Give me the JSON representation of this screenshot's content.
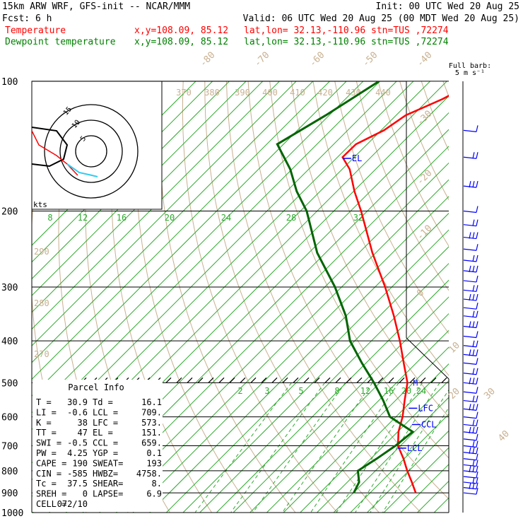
{
  "header": {
    "line1_left": "15km ARW WRF, GFS-init  -- NCAR/MMM",
    "line1_right": "Init: 00 UTC Wed 20 Aug 25",
    "line2_left": "Fcst:    6 h",
    "line2_right": "Valid: 06 UTC Wed 20 Aug 25 (00 MDT Wed 20 Aug 25)",
    "temp_label": "Temperature",
    "temp_xy": "x,y=108.09, 85.12",
    "temp_loc": "lat,lon= 32.13,-110.96  stn=TUS ,72274",
    "dew_label": "Dewpoint temperature",
    "dew_xy": "x,y=108.09, 85.12",
    "dew_loc": "lat,lon= 32.13,-110.96  stn=TUS ,72274",
    "barb_title1": "Full barb:",
    "barb_title2": "5 m s⁻¹"
  },
  "colors": {
    "temperature": "#ff0000",
    "dewpoint": "#006400",
    "parcel": "#ff0000",
    "isotherm": "#2eaa2e",
    "dry_adiabat": "#c8b090",
    "isobar": "#000000",
    "barb": "#0000ff",
    "hodo_cyan": "#33ccee"
  },
  "chart_data": {
    "type": "skew-t",
    "pressure_levels": [
      100,
      200,
      300,
      400,
      500,
      600,
      700,
      800,
      900,
      1000
    ],
    "temperature_tick_labels": [
      "8",
      "12",
      "16",
      "20",
      "24",
      "28",
      "32"
    ],
    "mixing_ratio_labels": [
      "2",
      "3",
      "5",
      "8",
      "12",
      "16",
      "20",
      "24"
    ],
    "dry_adiabat_labels_top": [
      "-80",
      "-70",
      "-60",
      "-50",
      "-40"
    ],
    "dry_adiabat_labels_right": [
      "-30",
      "-20",
      "-10",
      "0",
      "10",
      "20",
      "30",
      "40"
    ],
    "theta_labels_top": [
      "370",
      "380",
      "390",
      "400",
      "410",
      "420",
      "430",
      "440"
    ],
    "theta_labels_left": [
      "290",
      "280",
      "270"
    ],
    "annotations": [
      "EL",
      "LFC",
      "CCL",
      "LCL"
    ],
    "temperature_profile": [
      [
        900,
        30.9
      ],
      [
        850,
        27.4
      ],
      [
        800,
        23.6
      ],
      [
        750,
        19.8
      ],
      [
        700,
        15.4
      ],
      [
        650,
        12.2
      ],
      [
        600,
        9.6
      ],
      [
        550,
        6.2
      ],
      [
        500,
        2.6
      ],
      [
        450,
        -3.0
      ],
      [
        400,
        -9.2
      ],
      [
        350,
        -16.6
      ],
      [
        300,
        -25.6
      ],
      [
        250,
        -36.8
      ],
      [
        200,
        -49.5
      ],
      [
        180,
        -55.8
      ],
      [
        160,
        -62.2
      ],
      [
        150,
        -66.8
      ],
      [
        140,
        -66.7
      ],
      [
        130,
        -63.3
      ],
      [
        120,
        -61.7
      ],
      [
        110,
        -56.8
      ],
      [
        100,
        -52.9
      ]
    ],
    "dewpoint_profile": [
      [
        900,
        16.1
      ],
      [
        850,
        14.8
      ],
      [
        800,
        11.8
      ],
      [
        750,
        13.4
      ],
      [
        700,
        14.8
      ],
      [
        650,
        15.6
      ],
      [
        600,
        6.6
      ],
      [
        550,
        1.1
      ],
      [
        500,
        -5.4
      ],
      [
        450,
        -13.0
      ],
      [
        400,
        -21.1
      ],
      [
        350,
        -28.1
      ],
      [
        300,
        -37.6
      ],
      [
        250,
        -50.0
      ],
      [
        200,
        -62.5
      ],
      [
        180,
        -69.6
      ],
      [
        160,
        -76.4
      ],
      [
        140,
        -85.5
      ],
      [
        120,
        -80.8
      ],
      [
        100,
        -76.2
      ]
    ],
    "parcel_info": {
      "title": "Parcel Info",
      "rows": [
        [
          "T  =",
          "30.9",
          "Td =",
          "16.1"
        ],
        [
          "LI =",
          "-0.6",
          "LCL =",
          "709."
        ],
        [
          "K  =",
          "38",
          "LFC =",
          "573."
        ],
        [
          "TT =",
          "47",
          "EL  =",
          "151."
        ],
        [
          "SWI =",
          "-0.5",
          "CCL =",
          "659."
        ],
        [
          "PW =",
          "4.25",
          "YGP =",
          "0.1"
        ],
        [
          "CAPE =",
          "190",
          "SWEAT=",
          "193"
        ],
        [
          "CIN =",
          "-585",
          "HWBZ=",
          "4758."
        ],
        [
          "Tc =",
          "37.5",
          "SHEAR=",
          "8."
        ],
        [
          "SREH =",
          "0",
          "LAPSE=",
          "6.9"
        ],
        [
          "CELL =",
          "072/10",
          "",
          ""
        ]
      ]
    },
    "hodograph": {
      "ring_labels": [
        "5",
        "10",
        "15"
      ],
      "unit_label": "kts"
    },
    "wind_barbs_pressures": [
      130,
      150,
      175,
      200,
      215,
      230,
      245,
      260,
      275,
      290,
      305,
      320,
      335,
      350,
      370,
      390,
      410,
      430,
      450,
      475,
      500,
      525,
      550,
      575,
      600,
      625,
      650,
      675,
      700,
      725,
      750,
      775,
      800,
      825,
      850,
      875,
      900
    ]
  }
}
